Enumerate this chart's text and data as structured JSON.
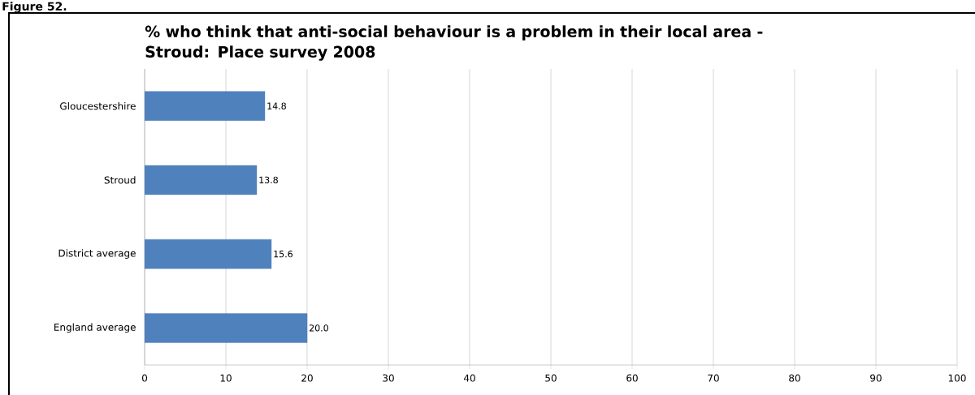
{
  "chart_data": {
    "type": "bar",
    "orientation": "horizontal",
    "title": "%  who think that anti-social behaviour is a problem in their local area - Stroud: Place survey 2008",
    "annotations": [
      "Figure 52."
    ],
    "categories": [
      "Gloucestershire",
      "Stroud",
      "District average",
      "England average"
    ],
    "values": [
      14.8,
      13.8,
      15.6,
      20.0
    ],
    "color": "#4f81bd",
    "xlim": [
      0,
      100
    ],
    "xticks": [
      0,
      10,
      20,
      30,
      40,
      50,
      60,
      70,
      80,
      90,
      100
    ],
    "value_labels": [
      "14.8",
      "13.8",
      "15.6",
      "20.0"
    ],
    "grid": "x"
  }
}
